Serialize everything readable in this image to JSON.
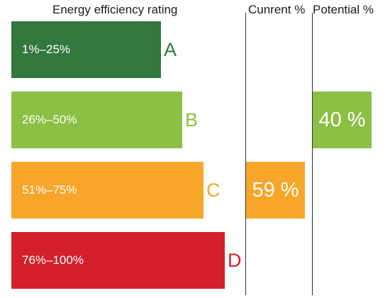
{
  "chart_data": {
    "type": "table",
    "headers": {
      "rating": "Energy efficiency rating",
      "current": "Cunrent %",
      "potential": "Potential %"
    },
    "bands": [
      {
        "letter": "A",
        "range": "1%–25%",
        "color": "#33783f"
      },
      {
        "letter": "B",
        "range": "26%–50%",
        "color": "#8cbf44"
      },
      {
        "letter": "C",
        "range": "51%–75%",
        "color": "#f7a629"
      },
      {
        "letter": "D",
        "range": "76%–100%",
        "color": "#d3202c"
      }
    ],
    "current": {
      "band": "C",
      "value": 59,
      "label": "59 %"
    },
    "potential": {
      "band": "B",
      "value": 40,
      "label": "40 %"
    }
  }
}
